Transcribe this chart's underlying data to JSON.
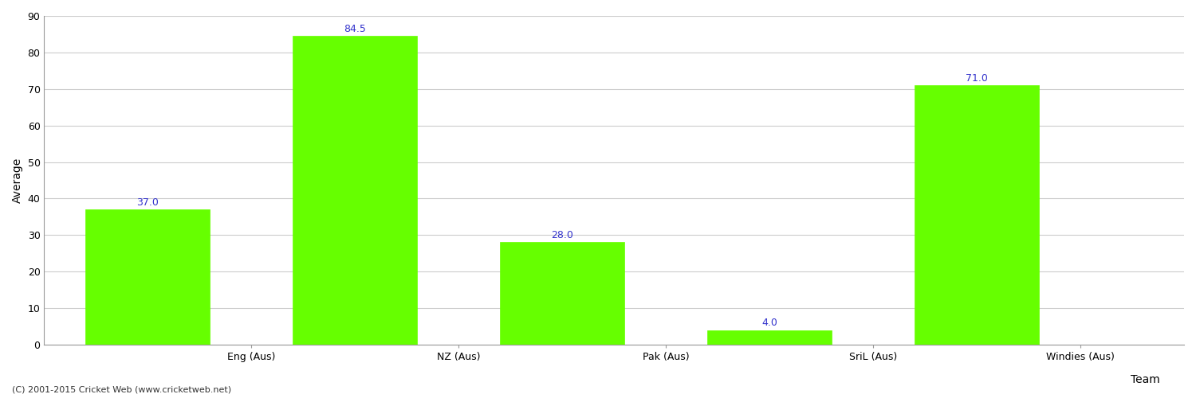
{
  "categories": [
    "Eng (Aus)",
    "NZ (Aus)",
    "Pak (Aus)",
    "SriL (Aus)",
    "Windies (Aus)"
  ],
  "values": [
    37.0,
    84.5,
    28.0,
    4.0,
    71.0
  ],
  "bar_color": "#66ff00",
  "bar_edge_color": "#66ff00",
  "label_color": "#3333cc",
  "label_fontsize": 9,
  "xlabel": "Team",
  "ylabel": "Average",
  "xlabel_fontsize": 10,
  "ylabel_fontsize": 10,
  "tick_fontsize": 9,
  "ylim": [
    0,
    90
  ],
  "yticks": [
    0,
    10,
    20,
    30,
    40,
    50,
    60,
    70,
    80,
    90
  ],
  "grid_color": "#cccccc",
  "background_color": "#ffffff",
  "footer_text": "(C) 2001-2015 Cricket Web (www.cricketweb.net)",
  "footer_fontsize": 8,
  "footer_color": "#333333",
  "bar_width": 0.6,
  "title_fontsize": 13,
  "spine_color": "#999999",
  "tick_color": "#999999"
}
